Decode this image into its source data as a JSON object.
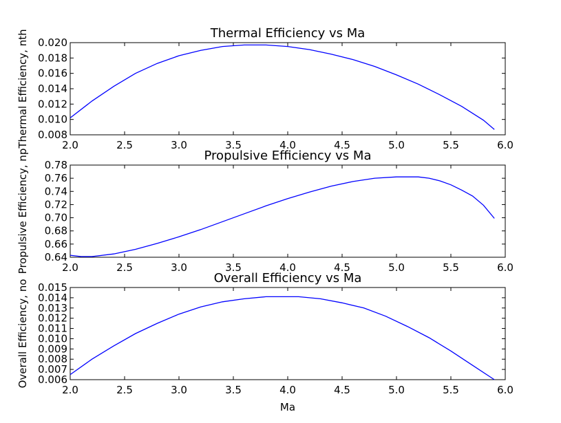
{
  "chart_data": [
    {
      "type": "line",
      "title": "Thermal Efficiency vs Ma",
      "xlabel": "",
      "ylabel": "Thermal Efficiency, nth",
      "xlim": [
        2.0,
        6.0
      ],
      "ylim": [
        0.008,
        0.02
      ],
      "xticks": [
        "2.0",
        "2.5",
        "3.0",
        "3.5",
        "4.0",
        "4.5",
        "5.0",
        "5.5",
        "6.0"
      ],
      "yticks": [
        "0.008",
        "0.010",
        "0.012",
        "0.014",
        "0.016",
        "0.018",
        "0.020"
      ],
      "grid": false,
      "color": "#0000ff",
      "x": [
        2.0,
        2.2,
        2.4,
        2.6,
        2.8,
        3.0,
        3.2,
        3.4,
        3.6,
        3.7,
        3.8,
        4.0,
        4.2,
        4.4,
        4.6,
        4.8,
        5.0,
        5.2,
        5.4,
        5.6,
        5.8,
        5.9
      ],
      "y": [
        0.0102,
        0.0124,
        0.0143,
        0.016,
        0.0173,
        0.0183,
        0.019,
        0.0195,
        0.0197,
        0.0197,
        0.0197,
        0.0195,
        0.0191,
        0.0185,
        0.0178,
        0.0169,
        0.0158,
        0.0146,
        0.0132,
        0.0117,
        0.0099,
        0.0087
      ]
    },
    {
      "type": "line",
      "title": "Propulsive Efficiency vs Ma",
      "xlabel": "",
      "ylabel": "Propulsive Efficiency, np",
      "xlim": [
        2.0,
        6.0
      ],
      "ylim": [
        0.64,
        0.78
      ],
      "xticks": [
        "2.0",
        "2.5",
        "3.0",
        "3.5",
        "4.0",
        "4.5",
        "5.0",
        "5.5",
        "6.0"
      ],
      "yticks": [
        "0.64",
        "0.66",
        "0.68",
        "0.70",
        "0.72",
        "0.74",
        "0.76",
        "0.78"
      ],
      "grid": false,
      "color": "#0000ff",
      "x": [
        2.0,
        2.1,
        2.2,
        2.4,
        2.6,
        2.8,
        3.0,
        3.2,
        3.4,
        3.6,
        3.8,
        4.0,
        4.2,
        4.4,
        4.6,
        4.8,
        5.0,
        5.1,
        5.2,
        5.3,
        5.4,
        5.5,
        5.6,
        5.7,
        5.8,
        5.9
      ],
      "y": [
        0.643,
        0.641,
        0.641,
        0.645,
        0.652,
        0.661,
        0.671,
        0.682,
        0.694,
        0.706,
        0.718,
        0.729,
        0.739,
        0.748,
        0.755,
        0.76,
        0.762,
        0.762,
        0.762,
        0.76,
        0.756,
        0.75,
        0.742,
        0.733,
        0.719,
        0.699
      ]
    },
    {
      "type": "line",
      "title": "Overall Efficiency vs Ma",
      "xlabel": "Ma",
      "ylabel": "Overall Efficiency, no",
      "xlim": [
        2.0,
        6.0
      ],
      "ylim": [
        0.006,
        0.015
      ],
      "xticks": [
        "2.0",
        "2.5",
        "3.0",
        "3.5",
        "4.0",
        "4.5",
        "5.0",
        "5.5",
        "6.0"
      ],
      "yticks": [
        "0.006",
        "0.007",
        "0.008",
        "0.009",
        "0.010",
        "0.011",
        "0.012",
        "0.013",
        "0.014",
        "0.015"
      ],
      "grid": false,
      "color": "#0000ff",
      "x": [
        2.0,
        2.2,
        2.4,
        2.6,
        2.8,
        3.0,
        3.2,
        3.4,
        3.6,
        3.8,
        3.95,
        4.1,
        4.3,
        4.5,
        4.7,
        4.9,
        5.1,
        5.3,
        5.5,
        5.7,
        5.9
      ],
      "y": [
        0.0065,
        0.008,
        0.0093,
        0.0105,
        0.0115,
        0.0124,
        0.0131,
        0.0136,
        0.0139,
        0.0141,
        0.0141,
        0.0141,
        0.0139,
        0.0135,
        0.013,
        0.0122,
        0.0112,
        0.0101,
        0.0088,
        0.0074,
        0.006
      ]
    }
  ]
}
